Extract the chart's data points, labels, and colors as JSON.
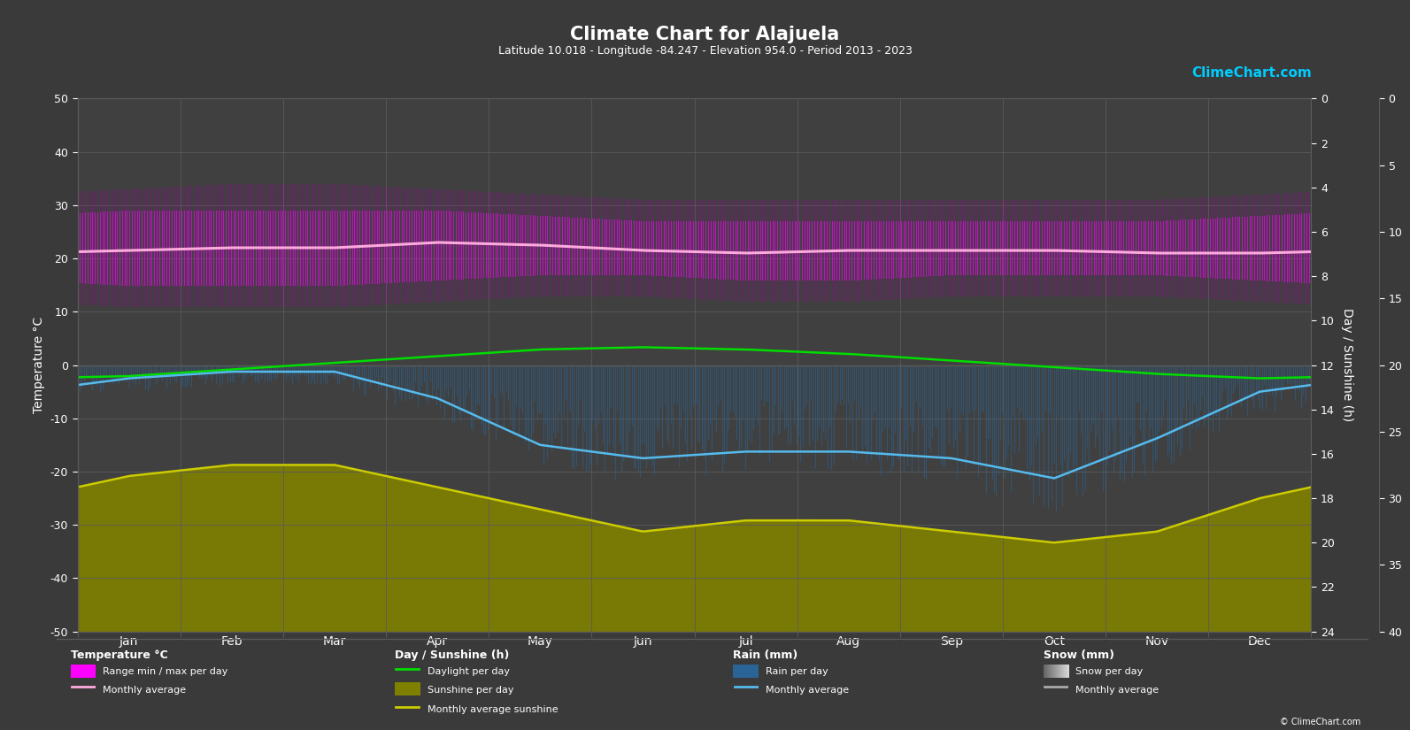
{
  "title": "Climate Chart for Alajuela",
  "subtitle": "Latitude 10.018 - Longitude -84.247 - Elevation 954.0 - Period 2013 - 2023",
  "background_color": "#3a3a3a",
  "plot_bg_color": "#404040",
  "grid_color": "#5a5a5a",
  "text_color": "#ffffff",
  "months": [
    "Jan",
    "Feb",
    "Mar",
    "Apr",
    "May",
    "Jun",
    "Jul",
    "Aug",
    "Sep",
    "Oct",
    "Nov",
    "Dec"
  ],
  "month_centers": [
    0.5,
    1.5,
    2.5,
    3.5,
    4.5,
    5.5,
    6.5,
    7.5,
    8.5,
    9.5,
    10.5,
    11.5
  ],
  "temp_ylim_min": -50,
  "temp_ylim_max": 50,
  "temp_ticks": [
    -50,
    -40,
    -30,
    -20,
    -10,
    0,
    10,
    20,
    30,
    40,
    50
  ],
  "sunshine_ticks": [
    0,
    2,
    4,
    6,
    8,
    10,
    12,
    14,
    16,
    18,
    20,
    22,
    24
  ],
  "rain_ticks": [
    0,
    5,
    10,
    15,
    20,
    25,
    30,
    35,
    40
  ],
  "temp_max_daily": [
    29,
    29,
    29,
    29,
    28,
    27,
    27,
    27,
    27,
    27,
    27,
    28
  ],
  "temp_min_daily": [
    15,
    15,
    15,
    16,
    17,
    17,
    16,
    16,
    17,
    17,
    17,
    16
  ],
  "temp_max_extreme": [
    33,
    34,
    34,
    33,
    32,
    31,
    31,
    31,
    31,
    31,
    31,
    32
  ],
  "temp_min_extreme": [
    11,
    11,
    11,
    12,
    13,
    13,
    12,
    12,
    13,
    13,
    13,
    12
  ],
  "temp_monthly_avg": [
    21.5,
    22.0,
    22.0,
    23.0,
    22.5,
    21.5,
    21.0,
    21.5,
    21.5,
    21.5,
    21.0,
    21.0
  ],
  "daylight": [
    11.5,
    11.8,
    12.1,
    12.4,
    12.7,
    12.8,
    12.7,
    12.5,
    12.2,
    11.9,
    11.6,
    11.4
  ],
  "sunshine_daily": [
    7.0,
    7.5,
    7.5,
    6.5,
    5.5,
    4.5,
    5.0,
    5.0,
    4.5,
    4.0,
    4.5,
    6.0
  ],
  "sunshine_monthly_avg": [
    7.0,
    7.5,
    7.5,
    6.5,
    5.5,
    4.5,
    5.0,
    5.0,
    4.5,
    4.0,
    4.5,
    6.0
  ],
  "rain_daily_max": [
    4,
    3,
    3,
    8,
    15,
    18,
    16,
    16,
    18,
    22,
    16,
    7
  ],
  "rain_monthly_avg": [
    2,
    1,
    1,
    5,
    12,
    14,
    13,
    13,
    14,
    17,
    11,
    4
  ],
  "logo_text": "ClimeChart.com",
  "copyright_text": "© ClimeChart.com"
}
